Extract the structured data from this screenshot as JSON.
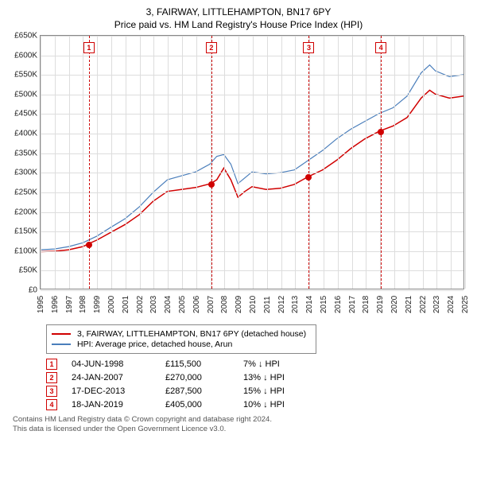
{
  "title": "3, FAIRWAY, LITTLEHAMPTON, BN17 6PY",
  "subtitle": "Price paid vs. HM Land Registry's House Price Index (HPI)",
  "chart": {
    "type": "line",
    "background_color": "#ffffff",
    "grid_color": "#dddddd",
    "border_color": "#888888",
    "x_years": [
      1995,
      1996,
      1997,
      1998,
      1999,
      2000,
      2001,
      2002,
      2003,
      2004,
      2005,
      2006,
      2007,
      2008,
      2009,
      2010,
      2011,
      2012,
      2013,
      2014,
      2015,
      2016,
      2017,
      2018,
      2019,
      2020,
      2021,
      2022,
      2023,
      2024,
      2025
    ],
    "ylim": [
      0,
      650000
    ],
    "ytick_step": 50000,
    "yticks": [
      "£0",
      "£50K",
      "£100K",
      "£150K",
      "£200K",
      "£250K",
      "£300K",
      "£350K",
      "£400K",
      "£450K",
      "£500K",
      "£550K",
      "£600K",
      "£650K"
    ],
    "tick_fontsize": 10,
    "series": {
      "price_paid": {
        "label": "3, FAIRWAY, LITTLEHAMPTON, BN17 6PY (detached house)",
        "color": "#d00000",
        "line_width": 1.5,
        "points": [
          [
            1995.0,
            95000
          ],
          [
            1996.0,
            96000
          ],
          [
            1997.0,
            100000
          ],
          [
            1998.0,
            108000
          ],
          [
            1998.42,
            115500
          ],
          [
            1999.0,
            125000
          ],
          [
            2000.0,
            145000
          ],
          [
            2001.0,
            165000
          ],
          [
            2002.0,
            190000
          ],
          [
            2003.0,
            225000
          ],
          [
            2004.0,
            250000
          ],
          [
            2005.0,
            255000
          ],
          [
            2006.0,
            260000
          ],
          [
            2007.07,
            270000
          ],
          [
            2007.5,
            280000
          ],
          [
            2008.0,
            310000
          ],
          [
            2008.5,
            280000
          ],
          [
            2009.0,
            235000
          ],
          [
            2009.5,
            250000
          ],
          [
            2010.0,
            262000
          ],
          [
            2011.0,
            255000
          ],
          [
            2012.0,
            258000
          ],
          [
            2013.0,
            268000
          ],
          [
            2013.96,
            287500
          ],
          [
            2015.0,
            305000
          ],
          [
            2016.0,
            330000
          ],
          [
            2017.0,
            360000
          ],
          [
            2018.0,
            385000
          ],
          [
            2019.05,
            405000
          ],
          [
            2020.0,
            418000
          ],
          [
            2021.0,
            440000
          ],
          [
            2022.0,
            490000
          ],
          [
            2022.6,
            510000
          ],
          [
            2023.0,
            500000
          ],
          [
            2024.0,
            490000
          ],
          [
            2025.0,
            495000
          ]
        ]
      },
      "hpi": {
        "label": "HPI: Average price, detached house, Arun",
        "color": "#4a7ebb",
        "line_width": 1.2,
        "points": [
          [
            1995.0,
            100000
          ],
          [
            1996.0,
            102000
          ],
          [
            1997.0,
            108000
          ],
          [
            1998.0,
            118000
          ],
          [
            1999.0,
            135000
          ],
          [
            2000.0,
            158000
          ],
          [
            2001.0,
            180000
          ],
          [
            2002.0,
            210000
          ],
          [
            2003.0,
            248000
          ],
          [
            2004.0,
            280000
          ],
          [
            2005.0,
            290000
          ],
          [
            2006.0,
            300000
          ],
          [
            2007.0,
            320000
          ],
          [
            2007.5,
            340000
          ],
          [
            2008.0,
            345000
          ],
          [
            2008.5,
            320000
          ],
          [
            2009.0,
            270000
          ],
          [
            2009.5,
            285000
          ],
          [
            2010.0,
            300000
          ],
          [
            2011.0,
            295000
          ],
          [
            2012.0,
            298000
          ],
          [
            2013.0,
            305000
          ],
          [
            2014.0,
            330000
          ],
          [
            2015.0,
            355000
          ],
          [
            2016.0,
            385000
          ],
          [
            2017.0,
            410000
          ],
          [
            2018.0,
            430000
          ],
          [
            2019.0,
            450000
          ],
          [
            2020.0,
            465000
          ],
          [
            2021.0,
            495000
          ],
          [
            2022.0,
            555000
          ],
          [
            2022.6,
            575000
          ],
          [
            2023.0,
            560000
          ],
          [
            2024.0,
            545000
          ],
          [
            2025.0,
            550000
          ]
        ]
      }
    },
    "sale_markers": [
      {
        "n": "1",
        "year": 1998.42,
        "price": 115500,
        "box_y": 620000
      },
      {
        "n": "2",
        "year": 2007.07,
        "price": 270000,
        "box_y": 620000
      },
      {
        "n": "3",
        "year": 2013.96,
        "price": 287500,
        "box_y": 620000
      },
      {
        "n": "4",
        "year": 2019.05,
        "price": 405000,
        "box_y": 620000
      }
    ]
  },
  "legend": [
    {
      "color": "#d00000",
      "label": "3, FAIRWAY, LITTLEHAMPTON, BN17 6PY (detached house)"
    },
    {
      "color": "#4a7ebb",
      "label": "HPI: Average price, detached house, Arun"
    }
  ],
  "sales": [
    {
      "n": "1",
      "date": "04-JUN-1998",
      "price": "£115,500",
      "diff": "7% ↓ HPI"
    },
    {
      "n": "2",
      "date": "24-JAN-2007",
      "price": "£270,000",
      "diff": "13% ↓ HPI"
    },
    {
      "n": "3",
      "date": "17-DEC-2013",
      "price": "£287,500",
      "diff": "15% ↓ HPI"
    },
    {
      "n": "4",
      "date": "18-JAN-2019",
      "price": "£405,000",
      "diff": "10% ↓ HPI"
    }
  ],
  "footer_line1": "Contains HM Land Registry data © Crown copyright and database right 2024.",
  "footer_line2": "This data is licensed under the Open Government Licence v3.0."
}
